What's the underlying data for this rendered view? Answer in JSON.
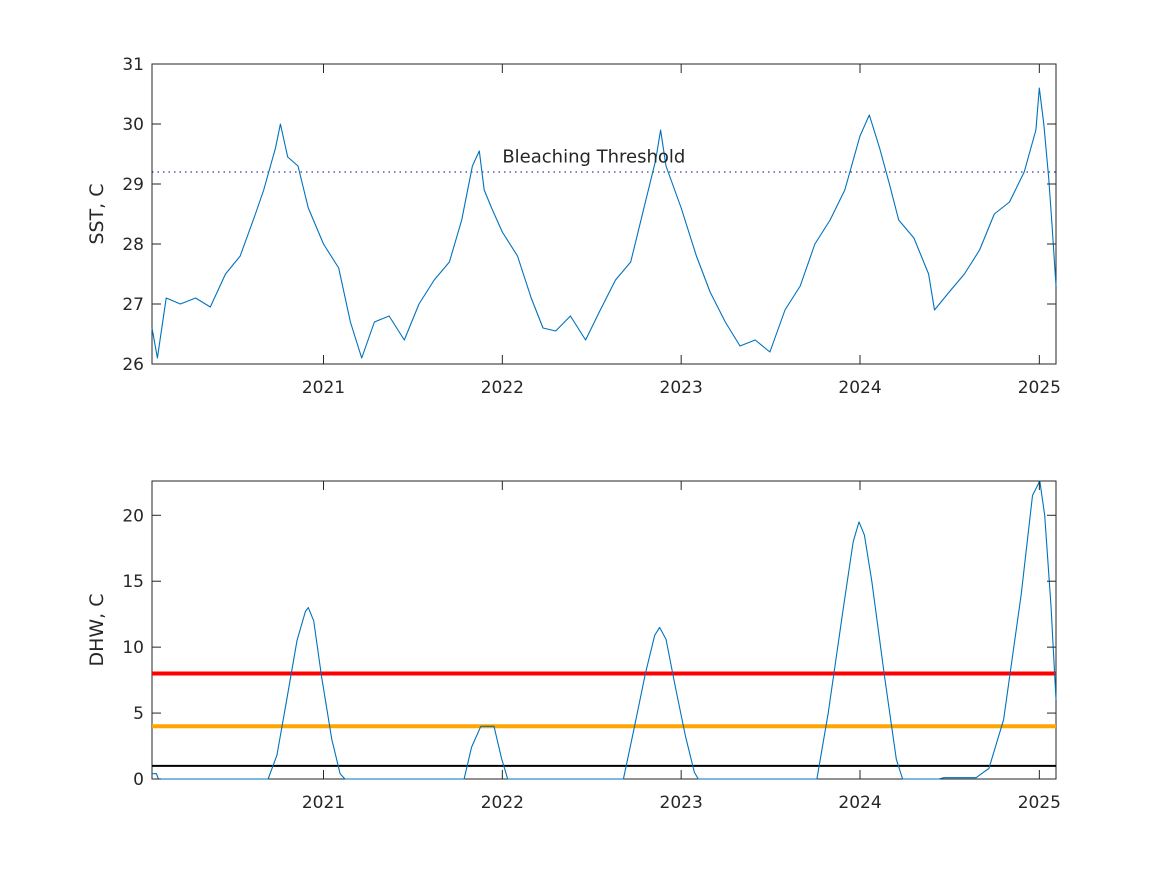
{
  "chart_data": [
    {
      "type": "line",
      "ylabel": "SST, C",
      "xlim": [
        "2020-01-17",
        "2025-02-04"
      ],
      "ylim": [
        26,
        31
      ],
      "yticks": [
        26,
        27,
        28,
        29,
        30,
        31
      ],
      "xticks": [
        "2021",
        "2022",
        "2023",
        "2024",
        "2025"
      ],
      "grid": false,
      "annotations": [
        {
          "text": "Bleaching Threshold",
          "x": "2022-01-01",
          "y": 29.36
        }
      ],
      "reference_lines": [
        {
          "y": 29.2,
          "style": "dotted",
          "color": "#0000a0"
        }
      ],
      "series": [
        {
          "color": "#0072bd",
          "points": [
            [
              "2020-01-17",
              26.6
            ],
            [
              "2020-01-28",
              26.1
            ],
            [
              "2020-02-15",
              27.1
            ],
            [
              "2020-03-15",
              27.0
            ],
            [
              "2020-04-15",
              27.1
            ],
            [
              "2020-05-15",
              26.95
            ],
            [
              "2020-06-15",
              27.5
            ],
            [
              "2020-07-15",
              27.8
            ],
            [
              "2020-08-15",
              28.5
            ],
            [
              "2020-09-01",
              28.9
            ],
            [
              "2020-09-25",
              29.6
            ],
            [
              "2020-10-05",
              30.0
            ],
            [
              "2020-10-20",
              29.45
            ],
            [
              "2020-11-10",
              29.3
            ],
            [
              "2020-12-01",
              28.6
            ],
            [
              "2021-01-01",
              28.0
            ],
            [
              "2021-02-01",
              27.6
            ],
            [
              "2021-02-25",
              26.7
            ],
            [
              "2021-03-20",
              26.1
            ],
            [
              "2021-04-15",
              26.7
            ],
            [
              "2021-05-15",
              26.8
            ],
            [
              "2021-06-15",
              26.4
            ],
            [
              "2021-07-15",
              27.0
            ],
            [
              "2021-08-15",
              27.4
            ],
            [
              "2021-09-15",
              27.7
            ],
            [
              "2021-10-10",
              28.4
            ],
            [
              "2021-11-01",
              29.3
            ],
            [
              "2021-11-15",
              29.55
            ],
            [
              "2021-11-25",
              28.9
            ],
            [
              "2021-12-10",
              28.6
            ],
            [
              "2022-01-01",
              28.2
            ],
            [
              "2022-02-01",
              27.8
            ],
            [
              "2022-03-01",
              27.1
            ],
            [
              "2022-03-25",
              26.6
            ],
            [
              "2022-04-20",
              26.55
            ],
            [
              "2022-05-20",
              26.8
            ],
            [
              "2022-06-20",
              26.4
            ],
            [
              "2022-07-20",
              26.9
            ],
            [
              "2022-08-20",
              27.4
            ],
            [
              "2022-09-20",
              27.7
            ],
            [
              "2022-10-20",
              28.7
            ],
            [
              "2022-11-10",
              29.4
            ],
            [
              "2022-11-20",
              29.9
            ],
            [
              "2022-12-01",
              29.3
            ],
            [
              "2023-01-01",
              28.6
            ],
            [
              "2023-02-01",
              27.8
            ],
            [
              "2023-03-01",
              27.2
            ],
            [
              "2023-04-01",
              26.7
            ],
            [
              "2023-05-01",
              26.3
            ],
            [
              "2023-06-01",
              26.4
            ],
            [
              "2023-07-01",
              26.2
            ],
            [
              "2023-08-01",
              26.9
            ],
            [
              "2023-09-01",
              27.3
            ],
            [
              "2023-10-01",
              28.0
            ],
            [
              "2023-11-01",
              28.4
            ],
            [
              "2023-12-01",
              28.9
            ],
            [
              "2024-01-01",
              29.8
            ],
            [
              "2024-01-20",
              30.15
            ],
            [
              "2024-02-10",
              29.6
            ],
            [
              "2024-03-01",
              29.0
            ],
            [
              "2024-03-20",
              28.4
            ],
            [
              "2024-04-20",
              28.1
            ],
            [
              "2024-05-20",
              27.5
            ],
            [
              "2024-06-01",
              26.9
            ],
            [
              "2024-07-01",
              27.2
            ],
            [
              "2024-08-01",
              27.5
            ],
            [
              "2024-09-01",
              27.9
            ],
            [
              "2024-10-01",
              28.5
            ],
            [
              "2024-11-01",
              28.7
            ],
            [
              "2024-12-01",
              29.2
            ],
            [
              "2024-12-25",
              29.9
            ],
            [
              "2025-01-01",
              30.6
            ],
            [
              "2025-01-10",
              30.0
            ],
            [
              "2025-01-20",
              29.1
            ],
            [
              "2025-01-27",
              28.3
            ],
            [
              "2025-02-04",
              27.3
            ]
          ]
        }
      ]
    },
    {
      "type": "line",
      "ylabel": "DHW, C",
      "xlim": [
        "2020-01-17",
        "2025-02-04"
      ],
      "ylim": [
        0,
        22.6
      ],
      "yticks": [
        0,
        5,
        10,
        15,
        20
      ],
      "xticks": [
        "2021",
        "2022",
        "2023",
        "2024",
        "2025"
      ],
      "grid": false,
      "reference_lines": [
        {
          "y": 8,
          "color": "#ff0000",
          "style": "solid"
        },
        {
          "y": 4,
          "color": "#ffa500",
          "style": "solid"
        },
        {
          "y": 1,
          "color": "#000000",
          "style": "solid"
        }
      ],
      "series": [
        {
          "color": "#0072bd",
          "points": [
            [
              "2020-01-17",
              0.4
            ],
            [
              "2020-01-26",
              0.4
            ],
            [
              "2020-01-30",
              0.0
            ],
            [
              "2020-09-10",
              0.0
            ],
            [
              "2020-09-28",
              1.8
            ],
            [
              "2020-10-18",
              6.0
            ],
            [
              "2020-11-08",
              10.5
            ],
            [
              "2020-11-25",
              12.7
            ],
            [
              "2020-12-01",
              13.0
            ],
            [
              "2020-12-12",
              12.0
            ],
            [
              "2020-12-28",
              7.8
            ],
            [
              "2021-01-18",
              3.0
            ],
            [
              "2021-02-04",
              0.4
            ],
            [
              "2021-02-14",
              0.0
            ],
            [
              "2021-10-15",
              0.0
            ],
            [
              "2021-10-30",
              2.4
            ],
            [
              "2021-11-18",
              4.0
            ],
            [
              "2021-12-15",
              4.0
            ],
            [
              "2021-12-30",
              1.6
            ],
            [
              "2022-01-12",
              0.0
            ],
            [
              "2022-09-05",
              0.0
            ],
            [
              "2022-09-25",
              3.5
            ],
            [
              "2022-10-20",
              8.0
            ],
            [
              "2022-11-08",
              10.9
            ],
            [
              "2022-11-18",
              11.5
            ],
            [
              "2022-12-01",
              10.6
            ],
            [
              "2022-12-20",
              7.0
            ],
            [
              "2023-01-10",
              3.2
            ],
            [
              "2023-01-28",
              0.5
            ],
            [
              "2023-02-05",
              0.0
            ],
            [
              "2023-10-05",
              0.0
            ],
            [
              "2023-10-28",
              5.0
            ],
            [
              "2023-11-28",
              13.0
            ],
            [
              "2023-12-18",
              18.0
            ],
            [
              "2023-12-30",
              19.5
            ],
            [
              "2024-01-10",
              18.5
            ],
            [
              "2024-01-25",
              15.0
            ],
            [
              "2024-02-20",
              7.8
            ],
            [
              "2024-03-15",
              1.5
            ],
            [
              "2024-03-28",
              0.0
            ],
            [
              "2024-06-10",
              0.0
            ],
            [
              "2024-06-20",
              0.1
            ],
            [
              "2024-08-25",
              0.1
            ],
            [
              "2024-09-05",
              0.4
            ],
            [
              "2024-09-20",
              0.8
            ],
            [
              "2024-10-20",
              4.5
            ],
            [
              "2024-11-25",
              14.0
            ],
            [
              "2024-12-18",
              21.5
            ],
            [
              "2025-01-02",
              22.6
            ],
            [
              "2025-01-12",
              20.0
            ],
            [
              "2025-01-25",
              13.0
            ],
            [
              "2025-02-04",
              6.0
            ]
          ]
        }
      ]
    }
  ]
}
